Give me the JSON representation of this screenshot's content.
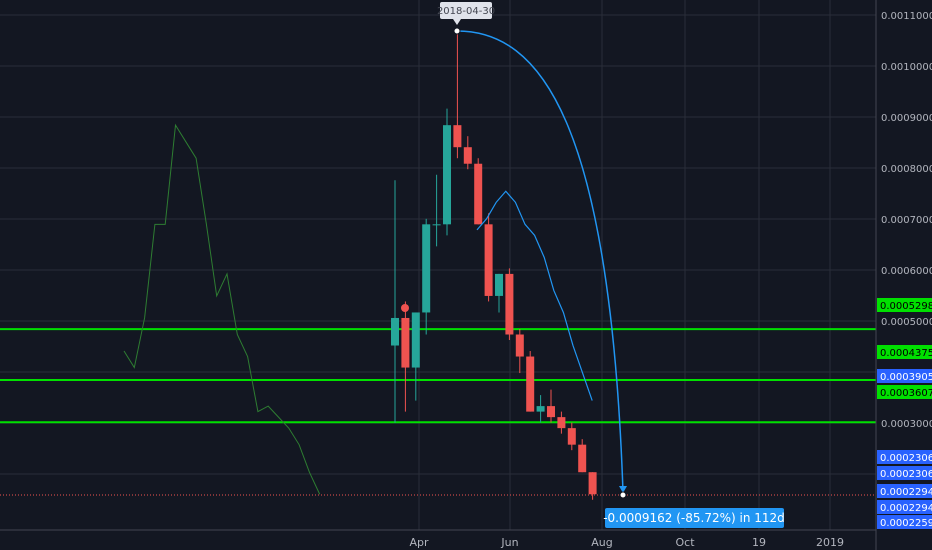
{
  "chart_data": {
    "type": "candlestick",
    "y_range": [
      0.000225,
      0.00113
    ],
    "y_ticks": [
      "0.0011000",
      "0.0010000",
      "0.0009000",
      "0.0008000",
      "0.0007000",
      "0.0006000",
      "0.0005000",
      "0.0003000"
    ],
    "x_ticks": [
      "Apr",
      "Jun",
      "Aug",
      "Oct",
      "19",
      "2019"
    ],
    "price_labels": [
      {
        "text": "0.0005298",
        "value": 0.0005298,
        "color": "#00e000"
      },
      {
        "text": "0.0004375",
        "value": 0.0004375,
        "color": "#00e000"
      },
      {
        "text": "0.0003905",
        "value": 0.0003905,
        "color": "#2962ff"
      },
      {
        "text": "0.0003607",
        "value": 0.0003607,
        "color": "#00e000"
      },
      {
        "text": "0.0002306",
        "value": 0.0002306,
        "color": "#2962ff"
      },
      {
        "text": "0.0002306",
        "value": 0.0002306,
        "color": "#2962ff"
      },
      {
        "text": "0.0002294",
        "value": 0.0002294,
        "color": "#2962ff"
      },
      {
        "text": "0.0002294",
        "value": 0.0002294,
        "color": "#2962ff"
      },
      {
        "text": "0.0002259",
        "value": 0.0002259,
        "color": "#2962ff"
      }
    ],
    "horizontal_lines": [
      0.0005298,
      0.0004375,
      0.0003607
    ],
    "current_price": 0.0002294,
    "candles": [
      {
        "o": 0.0005,
        "h": 0.0008,
        "l": 0.00036,
        "c": 0.00055
      },
      {
        "o": 0.00055,
        "h": 0.00058,
        "l": 0.00038,
        "c": 0.00046
      },
      {
        "o": 0.00046,
        "h": 0.00056,
        "l": 0.0004,
        "c": 0.00056
      },
      {
        "o": 0.00056,
        "h": 0.00073,
        "l": 0.00052,
        "c": 0.00072
      },
      {
        "o": 0.00072,
        "h": 0.00081,
        "l": 0.00068,
        "c": 0.00072
      },
      {
        "o": 0.00072,
        "h": 0.00093,
        "l": 0.0007,
        "c": 0.0009
      },
      {
        "o": 0.0009,
        "h": 0.00107,
        "l": 0.00084,
        "c": 0.00086
      },
      {
        "o": 0.00086,
        "h": 0.00088,
        "l": 0.00082,
        "c": 0.00083
      },
      {
        "o": 0.00083,
        "h": 0.00084,
        "l": 0.00072,
        "c": 0.00072
      },
      {
        "o": 0.00072,
        "h": 0.00074,
        "l": 0.00058,
        "c": 0.00059
      },
      {
        "o": 0.00059,
        "h": 0.00063,
        "l": 0.00056,
        "c": 0.00063
      },
      {
        "o": 0.00063,
        "h": 0.00064,
        "l": 0.00051,
        "c": 0.00052
      },
      {
        "o": 0.00052,
        "h": 0.00053,
        "l": 0.00045,
        "c": 0.00048
      },
      {
        "o": 0.00048,
        "h": 0.00049,
        "l": 0.00038,
        "c": 0.00038
      },
      {
        "o": 0.00038,
        "h": 0.00041,
        "l": 0.00036,
        "c": 0.00039
      },
      {
        "o": 0.00039,
        "h": 0.00042,
        "l": 0.00036,
        "c": 0.00037
      },
      {
        "o": 0.00037,
        "h": 0.00038,
        "l": 0.00034,
        "c": 0.00035
      },
      {
        "o": 0.00035,
        "h": 0.00036,
        "l": 0.00031,
        "c": 0.00032
      },
      {
        "o": 0.00032,
        "h": 0.00033,
        "l": 0.00027,
        "c": 0.00027
      },
      {
        "o": 0.00027,
        "h": 0.00027,
        "l": 0.00022,
        "c": 0.00023
      }
    ],
    "moving_average_blue": [
      0.00071,
      0.00073,
      0.00076,
      0.00078,
      0.00076,
      0.00072,
      0.0007,
      0.00066,
      0.0006,
      0.00056,
      0.0005,
      0.00045,
      0.0004
    ],
    "moving_average_green": [
      0.00049,
      0.00046,
      0.00055,
      0.00072,
      0.00072,
      0.0009,
      0.00087,
      0.00084,
      0.00072,
      0.00059,
      0.00063,
      0.00052,
      0.00048,
      0.00038,
      0.00039,
      0.00037,
      0.00035,
      0.00032,
      0.00027,
      0.00023
    ]
  },
  "annotation": {
    "start_date": "2018-04-30",
    "summary": "-0.0009162 (-85.72%) in 112d"
  }
}
